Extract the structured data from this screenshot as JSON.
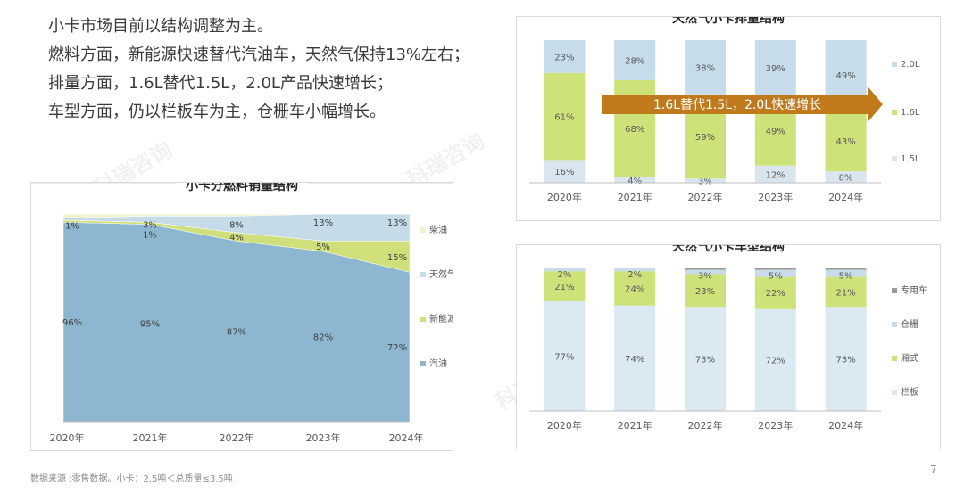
{
  "intro": {
    "lines": [
      "小卡市场目前以结构调整为主。",
      "燃料方面，新能源快速替代汽油车，天然气保持13%左右；",
      "排量方面，1.6L替代1.5L，2.0L产品快速增长；",
      "车型方面，仍以栏板车为主，仓栅车小幅增长。"
    ]
  },
  "footnote": "数据来源 :零售数据。小卡：2.5吨＜总质量≤3.5吨",
  "page_number": "7",
  "watermark": "科瑞咨询",
  "chart_data": [
    {
      "id": "fuel",
      "type": "area",
      "title": "小卡分燃料销量结构",
      "categories": [
        "2020年",
        "2021年",
        "2022年",
        "2023年",
        "2024年"
      ],
      "ylim": [
        0,
        100
      ],
      "series": [
        {
          "name": "汽油",
          "color": "#8db7d1",
          "values": [
            96,
            95,
            87,
            82,
            72
          ],
          "labels": [
            "96%",
            "95%",
            "87%",
            "82%",
            "72%"
          ]
        },
        {
          "name": "新能源",
          "color": "#cfe07a",
          "values": [
            1,
            1,
            4,
            5,
            15
          ],
          "labels": [
            "",
            "1%",
            "4%",
            "5%",
            "15%"
          ]
        },
        {
          "name": "天然气",
          "color": "#c5dbe8",
          "values": [
            1,
            3,
            8,
            13,
            13
          ],
          "labels": [
            "1%",
            "3%",
            "8%",
            "13%",
            "13%"
          ]
        },
        {
          "name": "柴油",
          "color": "#f2f2d0",
          "values": [
            2,
            1,
            1,
            0,
            0
          ],
          "labels": [
            "",
            "",
            "",
            "",
            ""
          ]
        }
      ],
      "legend_order": [
        "柴油",
        "天然气",
        "新能源",
        "汽油"
      ],
      "legend_position": "right"
    },
    {
      "id": "displacement",
      "type": "bar",
      "stacked": true,
      "title": "天然气小卡排量结构",
      "categories": [
        "2020年",
        "2021年",
        "2022年",
        "2023年",
        "2024年"
      ],
      "ylim": [
        0,
        100
      ],
      "series": [
        {
          "name": "1.5L",
          "color": "#d9e6ef",
          "values": [
            16,
            4,
            3,
            12,
            8
          ]
        },
        {
          "name": "1.6L",
          "color": "#cde37a",
          "values": [
            61,
            68,
            59,
            49,
            43
          ]
        },
        {
          "name": "2.0L",
          "color": "#c6dcea",
          "values": [
            23,
            28,
            38,
            39,
            49
          ]
        }
      ],
      "legend_order": [
        "2.0L",
        "1.6L",
        "1.5L"
      ],
      "legend_position": "right",
      "annotation": {
        "text": "1.6L替代1.5L，2.0L快速增长",
        "color": "#c07a1c"
      }
    },
    {
      "id": "bodytype",
      "type": "bar",
      "stacked": true,
      "title": "天然气小卡车型结构",
      "categories": [
        "2020年",
        "2021年",
        "2022年",
        "2023年",
        "2024年"
      ],
      "ylim": [
        0,
        100
      ],
      "series": [
        {
          "name": "栏板",
          "color": "#dbe9f2",
          "values": [
            77,
            74,
            73,
            72,
            73
          ]
        },
        {
          "name": "厢式",
          "color": "#cde37a",
          "values": [
            21,
            24,
            23,
            22,
            21
          ]
        },
        {
          "name": "仓栅",
          "color": "#c8dbe8",
          "values": [
            2,
            2,
            3,
            5,
            5
          ]
        },
        {
          "name": "专用车",
          "color": "#9b9b9b",
          "values": [
            0,
            0,
            1,
            1,
            1
          ]
        }
      ],
      "legend_order": [
        "专用车",
        "仓栅",
        "厢式",
        "栏板"
      ],
      "legend_position": "right"
    }
  ]
}
